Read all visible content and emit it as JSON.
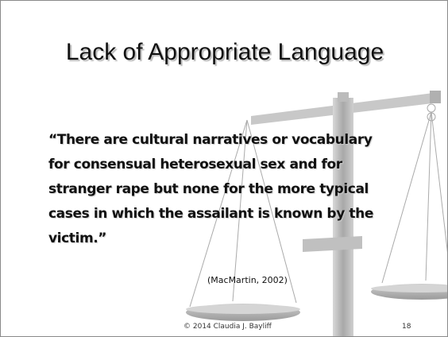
{
  "slide": {
    "title": "Lack of Appropriate Language",
    "quote_lines": [
      "“There are cultural narratives or vocabulary",
      "for consensual heterosexual sex and for",
      "stranger rape but none for the more typical",
      "cases in which the assailant is known by the",
      "victim.”"
    ],
    "citation": "(MacMartin, 2002)",
    "footer": "© 2014 Claudia J. Bayliff",
    "page_number": "18"
  }
}
